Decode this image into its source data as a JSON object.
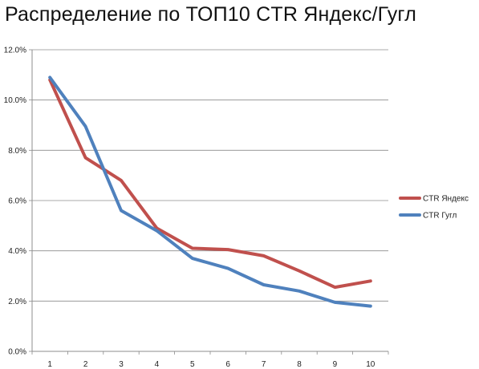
{
  "chart_data": {
    "type": "line",
    "title": "Распределение по ТОП10 CTR Яндекс/Гугл",
    "xlabel": "",
    "ylabel": "",
    "categories": [
      "1",
      "2",
      "3",
      "4",
      "5",
      "6",
      "7",
      "8",
      "9",
      "10"
    ],
    "yticks": [
      "0.0%",
      "2.0%",
      "4.0%",
      "6.0%",
      "8.0%",
      "10.0%",
      "12.0%"
    ],
    "ylim": [
      0,
      12
    ],
    "grid": true,
    "legend": "right",
    "series": [
      {
        "name": "CTR Яндекс",
        "color": "#c0504d",
        "values": [
          10.8,
          7.7,
          6.8,
          4.9,
          4.1,
          4.05,
          3.8,
          3.2,
          2.55,
          2.8
        ]
      },
      {
        "name": "CTR Гугл",
        "color": "#4f81bd",
        "values": [
          10.9,
          8.95,
          5.6,
          4.8,
          3.7,
          3.3,
          2.65,
          2.4,
          1.95,
          1.8
        ]
      }
    ]
  }
}
